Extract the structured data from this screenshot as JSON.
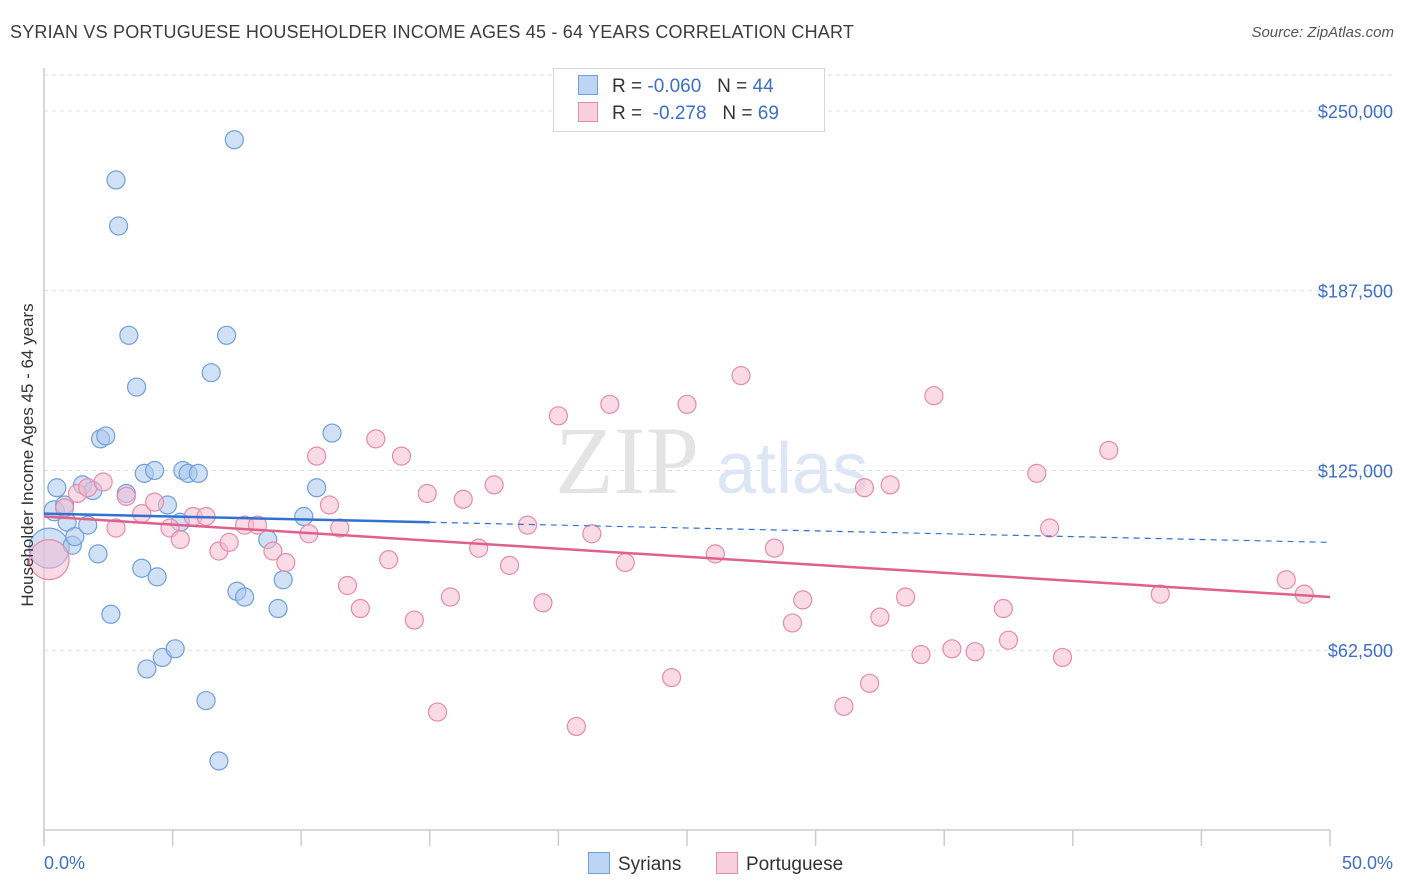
{
  "title": "SYRIAN VS PORTUGUESE HOUSEHOLDER INCOME AGES 45 - 64 YEARS CORRELATION CHART",
  "source": "Source: ZipAtlas.com",
  "watermark": {
    "bold": "ZIP",
    "light": "atlas"
  },
  "legend": {
    "r_label": "R =",
    "n_label": "N =",
    "series": [
      {
        "r": "-0.060",
        "n": "44"
      },
      {
        "r": "-0.278",
        "n": "69"
      }
    ]
  },
  "chart_data": {
    "type": "scatter",
    "title": "SYRIAN VS PORTUGUESE HOUSEHOLDER INCOME AGES 45 - 64 YEARS CORRELATION CHART",
    "xlabel": "",
    "ylabel": "Householder Income Ages 45 - 64 years",
    "xlim": [
      0,
      50
    ],
    "ylim": [
      0,
      262500
    ],
    "x_tick_labels": [
      "0.0%",
      "50.0%"
    ],
    "y_ticks": [
      62500,
      125000,
      187500,
      250000
    ],
    "y_tick_labels": [
      "$62,500",
      "$125,000",
      "$187,500",
      "$250,000"
    ],
    "grid": true,
    "series": [
      {
        "name": "Syrians",
        "color": "#a9c8ef",
        "edge": "#6f9fdc",
        "line_color": "#2f72cf",
        "trend": {
          "x0": 0,
          "y0": 110000,
          "x1": 15,
          "y1": 107000,
          "dashed_to_x": 50,
          "dashed_y": 100000
        },
        "points": [
          [
            0.2,
            98000,
            20
          ],
          [
            0.4,
            111000,
            10
          ],
          [
            0.5,
            119000,
            9
          ],
          [
            0.8,
            113000,
            9
          ],
          [
            0.9,
            107000,
            9
          ],
          [
            1.1,
            99000,
            9
          ],
          [
            1.2,
            102000,
            9
          ],
          [
            1.5,
            120000,
            9
          ],
          [
            1.7,
            106000,
            9
          ],
          [
            1.9,
            118000,
            9
          ],
          [
            2.1,
            96000,
            9
          ],
          [
            2.2,
            136000,
            9
          ],
          [
            2.4,
            137000,
            9
          ],
          [
            2.6,
            75000,
            9
          ],
          [
            2.8,
            226000,
            9
          ],
          [
            2.9,
            210000,
            9
          ],
          [
            3.2,
            117000,
            9
          ],
          [
            3.3,
            172000,
            9
          ],
          [
            3.6,
            154000,
            9
          ],
          [
            3.8,
            91000,
            9
          ],
          [
            3.9,
            124000,
            9
          ],
          [
            4.0,
            56000,
            9
          ],
          [
            4.3,
            125000,
            9
          ],
          [
            4.4,
            88000,
            9
          ],
          [
            4.6,
            60000,
            9
          ],
          [
            4.8,
            113000,
            9
          ],
          [
            5.1,
            63000,
            9
          ],
          [
            5.3,
            107000,
            9
          ],
          [
            5.4,
            125000,
            9
          ],
          [
            5.6,
            124000,
            9
          ],
          [
            6.0,
            124000,
            9
          ],
          [
            6.3,
            45000,
            9
          ],
          [
            6.5,
            159000,
            9
          ],
          [
            6.8,
            24000,
            9
          ],
          [
            7.1,
            172000,
            9
          ],
          [
            7.4,
            240000,
            9
          ],
          [
            7.5,
            83000,
            9
          ],
          [
            7.8,
            81000,
            9
          ],
          [
            8.7,
            101000,
            9
          ],
          [
            9.1,
            77000,
            9
          ],
          [
            9.3,
            87000,
            9
          ],
          [
            10.1,
            109000,
            9
          ],
          [
            10.6,
            119000,
            9
          ],
          [
            11.2,
            138000,
            9
          ]
        ]
      },
      {
        "name": "Portuguese",
        "color": "#f6bcd0",
        "edge": "#e88aab",
        "line_color": "#e0608c",
        "trend": {
          "x0": 0,
          "y0": 109000,
          "x1": 50,
          "y1": 81000
        },
        "points": [
          [
            0.2,
            94000,
            20
          ],
          [
            0.8,
            112000,
            9
          ],
          [
            1.3,
            117000,
            9
          ],
          [
            1.7,
            119000,
            9
          ],
          [
            2.3,
            121000,
            9
          ],
          [
            2.8,
            105000,
            9
          ],
          [
            3.2,
            116000,
            9
          ],
          [
            3.8,
            110000,
            9
          ],
          [
            4.3,
            114000,
            9
          ],
          [
            4.9,
            105000,
            9
          ],
          [
            5.3,
            101000,
            9
          ],
          [
            5.8,
            109000,
            9
          ],
          [
            6.3,
            109000,
            9
          ],
          [
            6.8,
            97000,
            9
          ],
          [
            7.2,
            100000,
            9
          ],
          [
            7.8,
            106000,
            9
          ],
          [
            8.3,
            106000,
            9
          ],
          [
            8.9,
            97000,
            9
          ],
          [
            9.4,
            93000,
            9
          ],
          [
            10.3,
            103000,
            9
          ],
          [
            10.6,
            130000,
            9
          ],
          [
            11.1,
            113000,
            9
          ],
          [
            11.5,
            105000,
            9
          ],
          [
            11.8,
            85000,
            9
          ],
          [
            12.3,
            77000,
            9
          ],
          [
            12.9,
            136000,
            9
          ],
          [
            13.4,
            94000,
            9
          ],
          [
            13.9,
            130000,
            9
          ],
          [
            14.4,
            73000,
            9
          ],
          [
            14.9,
            117000,
            9
          ],
          [
            15.3,
            41000,
            9
          ],
          [
            15.8,
            81000,
            9
          ],
          [
            16.3,
            115000,
            9
          ],
          [
            16.9,
            98000,
            9
          ],
          [
            17.5,
            120000,
            9
          ],
          [
            18.1,
            92000,
            9
          ],
          [
            18.8,
            106000,
            9
          ],
          [
            19.4,
            79000,
            9
          ],
          [
            20.0,
            144000,
            9
          ],
          [
            20.7,
            36000,
            9
          ],
          [
            21.3,
            103000,
            9
          ],
          [
            22.0,
            148000,
            9
          ],
          [
            22.6,
            93000,
            9
          ],
          [
            24.4,
            53000,
            9
          ],
          [
            25.0,
            148000,
            9
          ],
          [
            26.1,
            96000,
            9
          ],
          [
            27.1,
            158000,
            9
          ],
          [
            28.4,
            98000,
            9
          ],
          [
            29.1,
            72000,
            9
          ],
          [
            29.5,
            80000,
            9
          ],
          [
            31.1,
            43000,
            9
          ],
          [
            31.9,
            119000,
            9
          ],
          [
            32.1,
            51000,
            9
          ],
          [
            32.5,
            74000,
            9
          ],
          [
            32.9,
            120000,
            9
          ],
          [
            33.5,
            81000,
            9
          ],
          [
            34.1,
            61000,
            9
          ],
          [
            34.6,
            151000,
            9
          ],
          [
            35.3,
            63000,
            9
          ],
          [
            36.2,
            62000,
            9
          ],
          [
            37.5,
            66000,
            9
          ],
          [
            37.3,
            77000,
            9
          ],
          [
            38.6,
            124000,
            9
          ],
          [
            39.1,
            105000,
            9
          ],
          [
            39.6,
            60000,
            9
          ],
          [
            41.4,
            132000,
            9
          ],
          [
            43.4,
            82000,
            9
          ],
          [
            48.3,
            87000,
            9
          ],
          [
            49.0,
            82000,
            9
          ]
        ]
      }
    ]
  }
}
